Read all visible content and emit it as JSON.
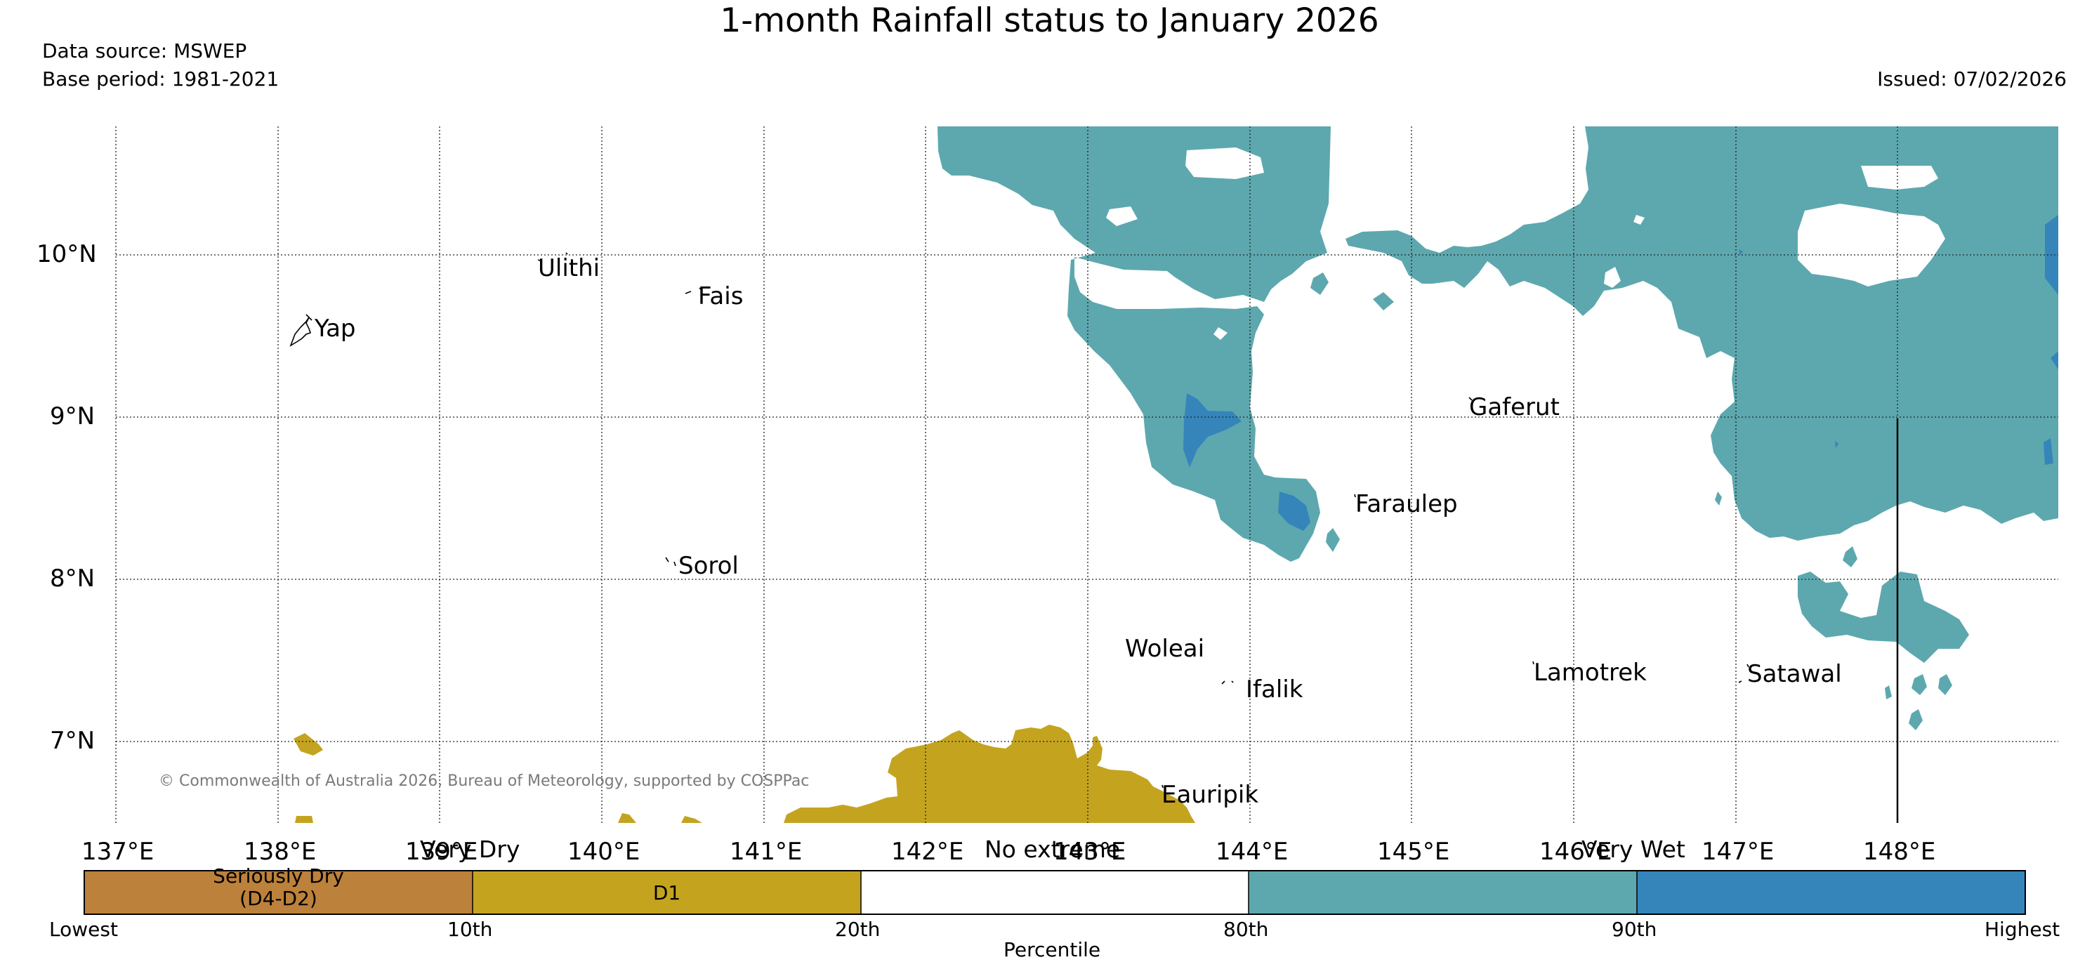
{
  "title": "1-month Rainfall status to January 2026",
  "data_source": "Data source: MSWEP",
  "base_period": "Base period: 1981-2021",
  "issued": "Issued: 07/02/2026",
  "copyright": "© Commonwealth of Australia 2026, Bureau of Meteorology, supported by COSPPac",
  "map": {
    "latitude_labels": [
      "10°N",
      "9°N",
      "8°N",
      "7°N"
    ],
    "longitude_labels": [
      "137°E",
      "138°E",
      "139°E",
      "140°E",
      "141°E",
      "142°E",
      "143°E",
      "144°E",
      "145°E",
      "146°E",
      "147°E",
      "148°E"
    ],
    "places": [
      "Yap",
      "Ulithi",
      "Fais",
      "Sorol",
      "Woleai",
      "Ifalik",
      "Eauripik",
      "Gaferut",
      "Faraulep",
      "Lamotrek",
      "Satawal"
    ]
  },
  "legend": {
    "categories": [
      {
        "label": "Seriously Dry",
        "sublabel": "(D4-D2)",
        "color": "#bc813b"
      },
      {
        "label": "D1",
        "color": "#c4a41f"
      },
      {
        "label": "",
        "color": "#ffffff"
      },
      {
        "label": "",
        "color": "#5da8ae"
      },
      {
        "label": "",
        "color": "#3585bb"
      }
    ],
    "headers": [
      "Very Dry",
      "No extreme",
      "Very Wet"
    ],
    "ticks": [
      "Lowest",
      "10th",
      "20th",
      "80th",
      "90th",
      "Highest"
    ],
    "axis_label": "Percentile"
  },
  "colors": {
    "seriously_dry": "#bc813b",
    "d1": "#c4a41f",
    "no_extreme": "#ffffff",
    "wet": "#5da8ae",
    "very_wet": "#3585bb"
  }
}
